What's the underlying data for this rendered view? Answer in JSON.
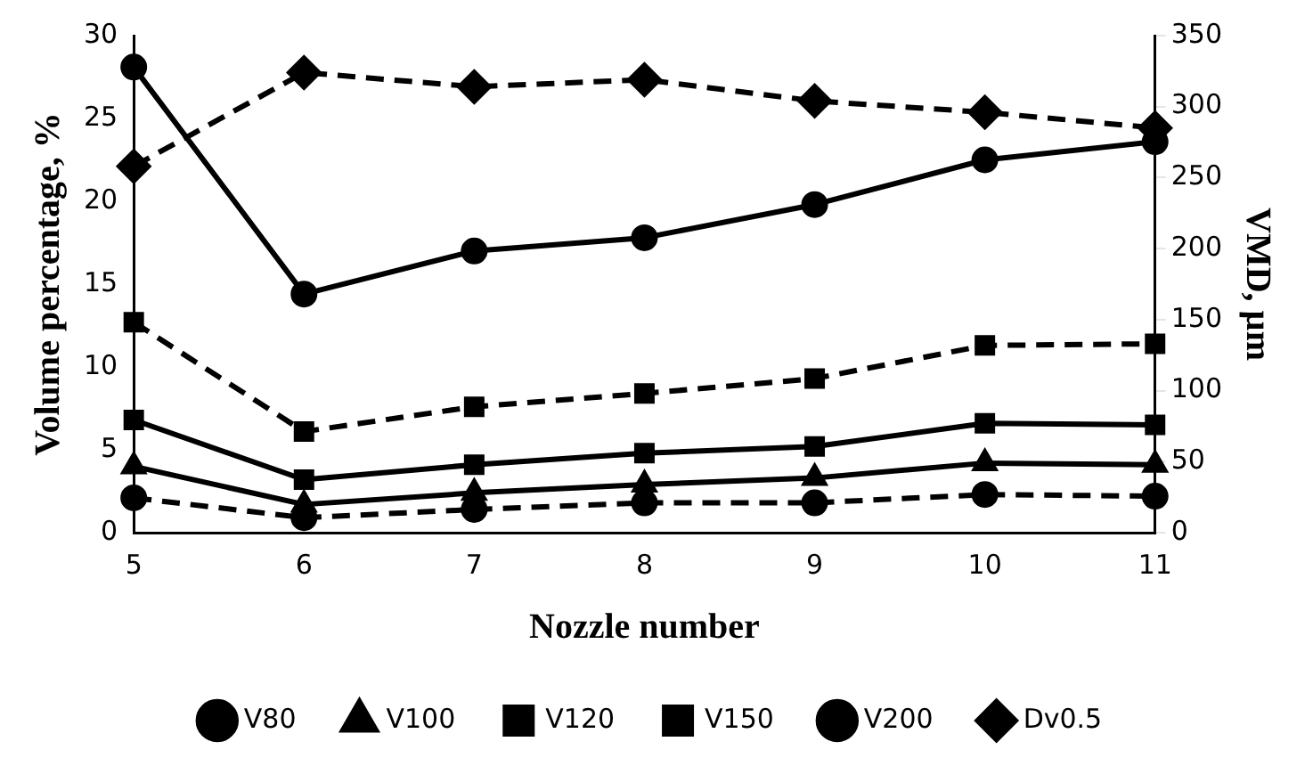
{
  "chart_data": {
    "type": "line",
    "xlabel": "Nozzle number",
    "ylabel": "Volume percentage, %",
    "y2label": "VMD, µm",
    "categories": [
      "5",
      "6",
      "7",
      "8",
      "9",
      "10",
      "11"
    ],
    "series": [
      {
        "name": "V80",
        "color": "#000000",
        "marker": "circle",
        "line_style": "dashed",
        "values": [
          2.1,
          0.9,
          1.4,
          1.8,
          1.8,
          2.3,
          2.2
        ]
      },
      {
        "name": "V100",
        "color": "#000000",
        "marker": "triangle",
        "line_style": "solid",
        "values": [
          4.0,
          1.7,
          2.4,
          2.9,
          3.3,
          4.2,
          4.1
        ]
      },
      {
        "name": "V120",
        "color": "#000000",
        "marker": "square",
        "line_style": "solid",
        "values": [
          6.8,
          3.2,
          4.1,
          4.8,
          5.2,
          6.6,
          6.5
        ]
      },
      {
        "name": "V150",
        "color": "#000000",
        "marker": "square",
        "line_style": "dashed",
        "values": [
          12.7,
          6.1,
          7.6,
          8.4,
          9.3,
          11.3,
          11.4
        ]
      },
      {
        "name": "V200",
        "color": "#000000",
        "marker": "circle",
        "line_style": "solid",
        "values": [
          28.1,
          14.4,
          17.0,
          17.8,
          19.8,
          22.5,
          23.6
        ]
      },
      {
        "name": "Dv0.5",
        "color": "#000000",
        "marker": "diamond",
        "line_style": "dashed",
        "axis": "y2",
        "values": [
          258,
          324,
          314,
          319,
          304,
          296,
          285
        ]
      }
    ],
    "ylim": [
      0,
      30
    ],
    "yticks": [
      0,
      5,
      10,
      15,
      20,
      25,
      30
    ],
    "y2lim": [
      0,
      350
    ],
    "y2ticks": [
      0,
      50,
      100,
      150,
      200,
      250,
      300,
      350
    ],
    "grid": false,
    "legend": "bottom"
  }
}
